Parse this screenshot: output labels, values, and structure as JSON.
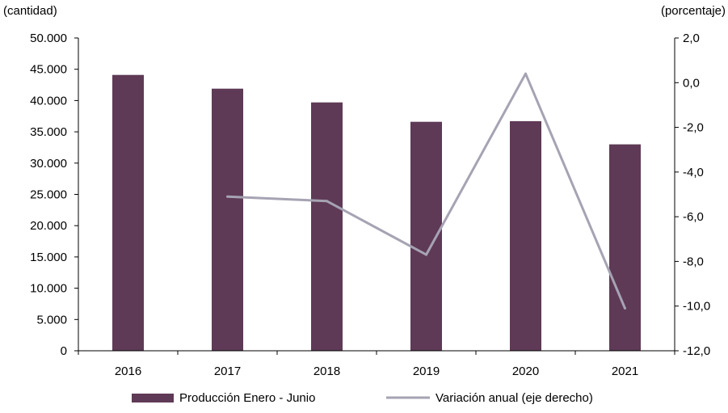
{
  "chart_data": {
    "type": "bar",
    "title": "",
    "xlabel": "",
    "ylabel_left": "(cantidad)",
    "ylabel_right": "(porcentaje)",
    "categories": [
      "2016",
      "2017",
      "2018",
      "2019",
      "2020",
      "2021"
    ],
    "left_axis": {
      "ylim": [
        0,
        50000
      ],
      "ticks": [
        0,
        5000,
        10000,
        15000,
        20000,
        25000,
        30000,
        35000,
        40000,
        45000,
        50000
      ],
      "tick_labels": [
        "0",
        "5.000",
        "10.000",
        "15.000",
        "20.000",
        "25.000",
        "30.000",
        "35.000",
        "40.000",
        "45.000",
        "50.000"
      ]
    },
    "right_axis": {
      "ylim": [
        -12,
        2
      ],
      "ticks": [
        2,
        0,
        -2,
        -4,
        -6,
        -8,
        -10,
        -12
      ],
      "tick_labels": [
        "2,0",
        "0,0",
        "-2,0",
        "-4,0",
        "-6,0",
        "-8,0",
        "-10,0",
        "-12,0"
      ]
    },
    "series": [
      {
        "name": "Producción Enero - Junio",
        "type": "bar",
        "axis": "left",
        "color": "#5e3a56",
        "values": [
          44100,
          41900,
          39700,
          36600,
          36700,
          33000
        ]
      },
      {
        "name": "Variación anual (eje derecho)",
        "type": "line",
        "axis": "right",
        "color": "#a6a3b3",
        "values": [
          null,
          -5.1,
          -5.3,
          -7.7,
          0.4,
          -10.1
        ]
      }
    ],
    "legend_position": "bottom",
    "grid": false
  }
}
